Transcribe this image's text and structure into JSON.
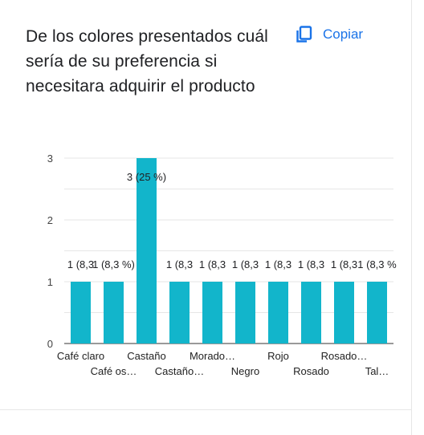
{
  "question": {
    "title": "De los colores presentados cuál sería de su preferencia si necesitara adquirir el producto"
  },
  "toolbar": {
    "copy_label": "Copiar",
    "copy_icon": "copy-icon"
  },
  "colors": {
    "bar": "#12b5cb",
    "accent": "#1a73e8",
    "grid": "#e6e6e6",
    "text": "#202124"
  },
  "chart_data": {
    "type": "bar",
    "categories": [
      "Café claro",
      "Café os…",
      "Castaño",
      "Castaño…",
      "Morado…",
      "Negro",
      "Rojo",
      "Rosado",
      "Rosado…",
      "Tal…"
    ],
    "values": [
      1,
      1,
      3,
      1,
      1,
      1,
      1,
      1,
      1,
      1
    ],
    "data_labels": [
      "1 (8,3",
      "1 (8,3 %)",
      "3 (25 %)",
      "1 (8,3",
      "1 (8,3",
      "1 (8,3",
      "1 (8,3",
      "1 (8,3",
      "1 (8,3",
      "1 (8,3 %"
    ],
    "yticks": [
      "0",
      "1",
      "2",
      "3"
    ],
    "ylim": [
      0,
      3
    ],
    "grid": true,
    "title": "",
    "xlabel": "",
    "ylabel": ""
  }
}
